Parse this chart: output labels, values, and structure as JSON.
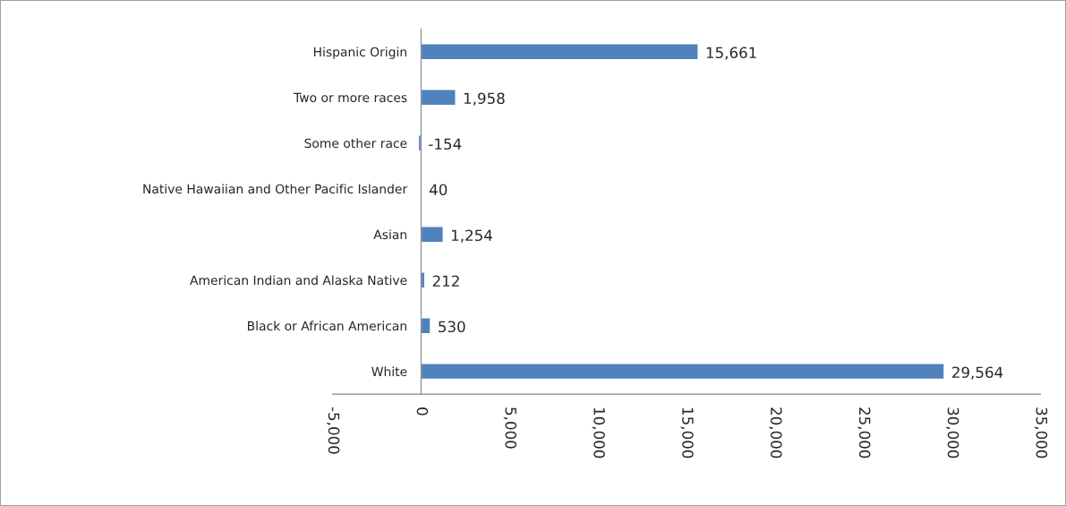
{
  "chart_data": {
    "type": "bar",
    "orientation": "horizontal",
    "categories": [
      "Hispanic Origin",
      "Two or more races",
      "Some other race",
      "Native Hawaiian and Other Pacific Islander",
      "Asian",
      "American Indian and Alaska Native",
      "Black or African American",
      "White"
    ],
    "values": [
      15661,
      1958,
      -154,
      40,
      1254,
      212,
      530,
      29564
    ],
    "value_labels": [
      "15,661",
      "1,958",
      "-154",
      "40",
      "1,254",
      "212",
      "530",
      "29,564"
    ],
    "color": "#4f81bd",
    "xlim": [
      -5000,
      35000
    ],
    "xticks": [
      {
        "value": -5000,
        "label": "-5,000"
      },
      0,
      {
        "value": 5000,
        "label": "5,000"
      },
      {
        "value": 10000,
        "label": "10,000"
      },
      {
        "value": 15000,
        "label": "15,000"
      },
      {
        "value": 20000,
        "label": "20,000"
      },
      {
        "value": 25000,
        "label": "25,000"
      },
      {
        "value": 30000,
        "label": "30,000"
      },
      {
        "value": 35000,
        "label": "35,000"
      }
    ],
    "grid": false,
    "legend": false
  }
}
